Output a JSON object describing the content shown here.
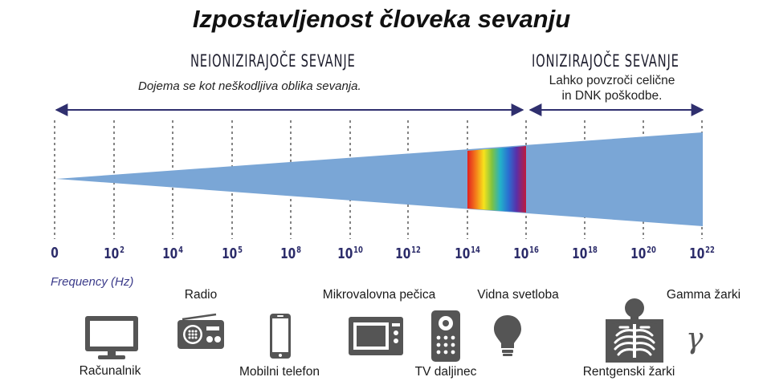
{
  "title": "Izpostavljenost človeka sevanju",
  "non_ionizing": {
    "label": "NEIONIZIRAJOČE SEVANJE",
    "description": "Dojema se kot neškodljiva oblika sevanja."
  },
  "ionizing": {
    "label": "IONIZIRAJOČE SEVANJE",
    "description_line1": "Lahko povzroči celične",
    "description_line2": "in DNK poškodbe."
  },
  "frequency_label": "Frequency (Hz)",
  "ticks": [
    {
      "base": "0",
      "exp": ""
    },
    {
      "base": "10",
      "exp": "2"
    },
    {
      "base": "10",
      "exp": "4"
    },
    {
      "base": "10",
      "exp": "5"
    },
    {
      "base": "10",
      "exp": "8"
    },
    {
      "base": "10",
      "exp": "10"
    },
    {
      "base": "10",
      "exp": "12"
    },
    {
      "base": "10",
      "exp": "14"
    },
    {
      "base": "10",
      "exp": "16"
    },
    {
      "base": "10",
      "exp": "18"
    },
    {
      "base": "10",
      "exp": "20"
    },
    {
      "base": "10",
      "exp": "22"
    }
  ],
  "devices": {
    "computer": "Računalnik",
    "radio": "Radio",
    "mobile_phone": "Mobilni telefon",
    "microwave": "Mikrovalovna pečica",
    "tv_remote": "TV daljinec",
    "visible_light": "Vidna svetloba",
    "xray": "Rentgenski žarki",
    "gamma": "Gamma žarki"
  },
  "gamma_symbol": "γ",
  "colors": {
    "band": "#7aa6d6",
    "arrow": "#2f2f6e",
    "tick_text": "#2c2c6a",
    "icon": "#555555"
  }
}
